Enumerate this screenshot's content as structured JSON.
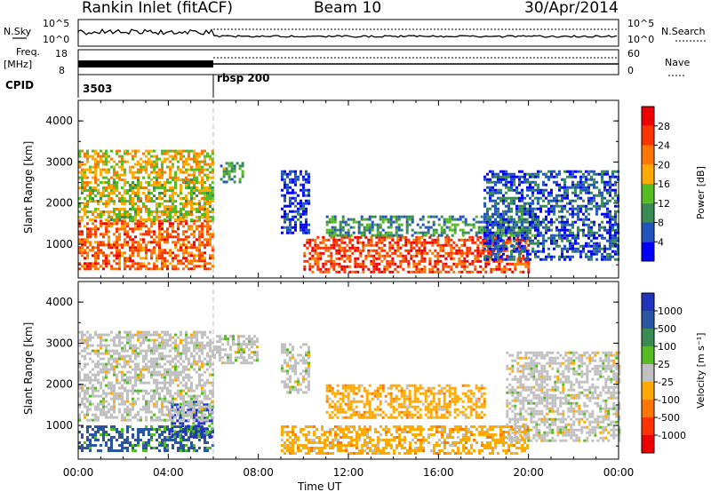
{
  "header": {
    "station": "Rankin Inlet (fitACF)",
    "beam": "Beam 10",
    "date": "30/Apr/2014"
  },
  "top_strip": {
    "nsky_label": "N.Sky",
    "nsearch_label": "N.Search",
    "freq_label": "Freq.",
    "freq_unit": "[MHz]",
    "nave_label": "Nave",
    "cpid_label": "CPID",
    "left_ticks_noise": [
      "10^5",
      "10^0"
    ],
    "right_ticks_noise": [
      "10^5",
      "10^0"
    ],
    "left_ticks_freq": [
      "18",
      "8"
    ],
    "right_ticks_nave": [
      "60",
      "0"
    ],
    "cpid_segments": [
      {
        "label": "3503",
        "start_hour": 0
      },
      {
        "label": "rbsp 200",
        "start_hour": 6
      }
    ]
  },
  "colors": {
    "power_scale": [
      "#0000ff",
      "#2255bb",
      "#3a8a55",
      "#55bb22",
      "#ffaa00",
      "#ff7700",
      "#ff3300",
      "#ee0000"
    ],
    "velocity_scale": [
      "#2233bb",
      "#2a55a0",
      "#3a8a55",
      "#55bb22",
      "#c0c0c0",
      "#ffaa00",
      "#ff7700",
      "#ff3300",
      "#ee0000"
    ]
  },
  "chart_data": [
    {
      "type": "heatmap",
      "name": "Power",
      "xlabel": "",
      "ylabel": "Slant Range [km]",
      "xlim": [
        0,
        24
      ],
      "ylim": [
        180,
        4500
      ],
      "yticks": [
        1000,
        2000,
        3000,
        4000
      ],
      "xticks": [
        "00:00",
        "04:00",
        "08:00",
        "12:00",
        "16:00",
        "20:00",
        "00:00"
      ],
      "colorbar": {
        "label": "Power [dB]",
        "ticks": [
          4,
          8,
          12,
          16,
          20,
          24,
          28
        ]
      },
      "regions": [
        {
          "t0": 0.0,
          "t1": 6.0,
          "r0": 400,
          "r1": 1600,
          "value": 26
        },
        {
          "t0": 0.0,
          "t1": 6.0,
          "r0": 1600,
          "r1": 2600,
          "value": 18
        },
        {
          "t0": 0.0,
          "t1": 6.0,
          "r0": 2600,
          "r1": 3300,
          "value": 20
        },
        {
          "t0": 6.3,
          "t1": 7.3,
          "r0": 2500,
          "r1": 3000,
          "value": 14
        },
        {
          "t0": 9.0,
          "t1": 10.2,
          "r0": 1300,
          "r1": 2800,
          "value": 6
        },
        {
          "t0": 10.0,
          "t1": 20.0,
          "r0": 300,
          "r1": 1200,
          "value": 28
        },
        {
          "t0": 11.0,
          "t1": 20.5,
          "r0": 1200,
          "r1": 1700,
          "value": 12
        },
        {
          "t0": 18.0,
          "t1": 24.0,
          "r0": 600,
          "r1": 2800,
          "value": 8
        }
      ]
    },
    {
      "type": "heatmap",
      "name": "Velocity",
      "xlabel": "Time UT",
      "ylabel": "Slant Range [km]",
      "xlim": [
        0,
        24
      ],
      "ylim": [
        180,
        4500
      ],
      "yticks": [
        1000,
        2000,
        3000,
        4000
      ],
      "xticks": [
        "00:00",
        "04:00",
        "08:00",
        "12:00",
        "16:00",
        "20:00",
        "00:00"
      ],
      "colorbar": {
        "label": "Velocity [m s⁻¹]",
        "ticks": [
          1000,
          500,
          100,
          25,
          -25,
          -100,
          -500,
          -1000
        ]
      },
      "regions": [
        {
          "t0": 0.0,
          "t1": 6.0,
          "r0": 400,
          "r1": 1000,
          "value": 500
        },
        {
          "t0": 4.0,
          "t1": 6.0,
          "r0": 700,
          "r1": 1600,
          "value": 1000
        },
        {
          "t0": 0.0,
          "t1": 6.0,
          "r0": 1100,
          "r1": 3300,
          "value": 0
        },
        {
          "t0": 6.0,
          "t1": 8.0,
          "r0": 2500,
          "r1": 3200,
          "value": 0
        },
        {
          "t0": 9.0,
          "t1": 10.2,
          "r0": 1800,
          "r1": 3000,
          "value": 0
        },
        {
          "t0": 9.0,
          "t1": 20.0,
          "r0": 300,
          "r1": 1000,
          "value": -100
        },
        {
          "t0": 11.0,
          "t1": 18.0,
          "r0": 1200,
          "r1": 2000,
          "value": -100
        },
        {
          "t0": 19.0,
          "t1": 24.0,
          "r0": 600,
          "r1": 2800,
          "value": 0
        }
      ]
    }
  ]
}
